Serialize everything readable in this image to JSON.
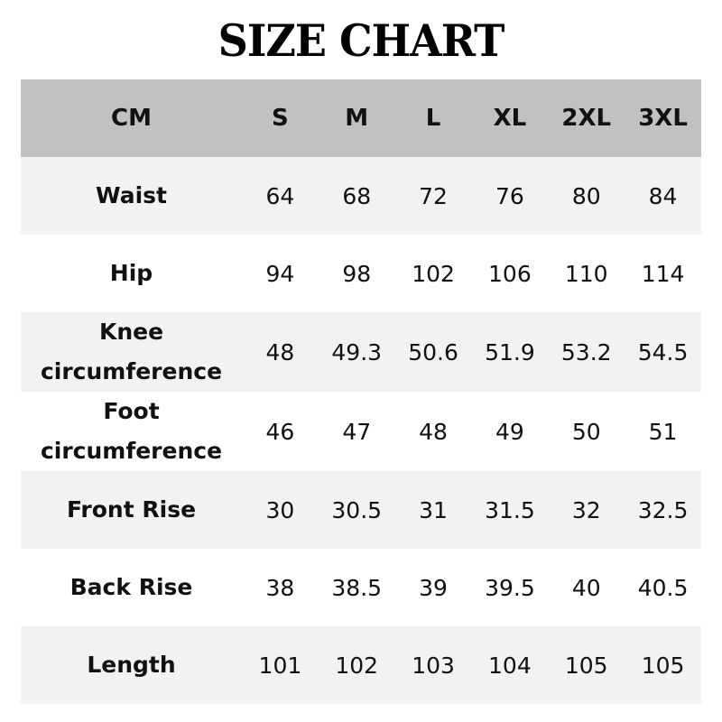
{
  "title": "SIZE CHART",
  "header": [
    "CM",
    "S",
    "M",
    "L",
    "XL",
    "2XL",
    "3XL"
  ],
  "rows": [
    {
      "label": "Waist",
      "values": [
        "64",
        "68",
        "72",
        "76",
        "80",
        "84"
      ]
    },
    {
      "label": "Hip",
      "values": [
        "94",
        "98",
        "102",
        "106",
        "110",
        "114"
      ]
    },
    {
      "label": "Knee circumference",
      "values": [
        "48",
        "49.3",
        "50.6",
        "51.9",
        "53.2",
        "54.5"
      ]
    },
    {
      "label": "Foot circumference",
      "values": [
        "46",
        "47",
        "48",
        "49",
        "50",
        "51"
      ]
    },
    {
      "label": "Front Rise",
      "values": [
        "30",
        "30.5",
        "31",
        "31.5",
        "32",
        "32.5"
      ]
    },
    {
      "label": "Back Rise",
      "values": [
        "38",
        "38.5",
        "39",
        "39.5",
        "40",
        "40.5"
      ]
    },
    {
      "label": "Length",
      "values": [
        "101",
        "102",
        "103",
        "104",
        "105",
        "105"
      ]
    }
  ],
  "colors": {
    "header_bg": "#c1c1c1",
    "stripe_bg": "#f2f2f2"
  }
}
